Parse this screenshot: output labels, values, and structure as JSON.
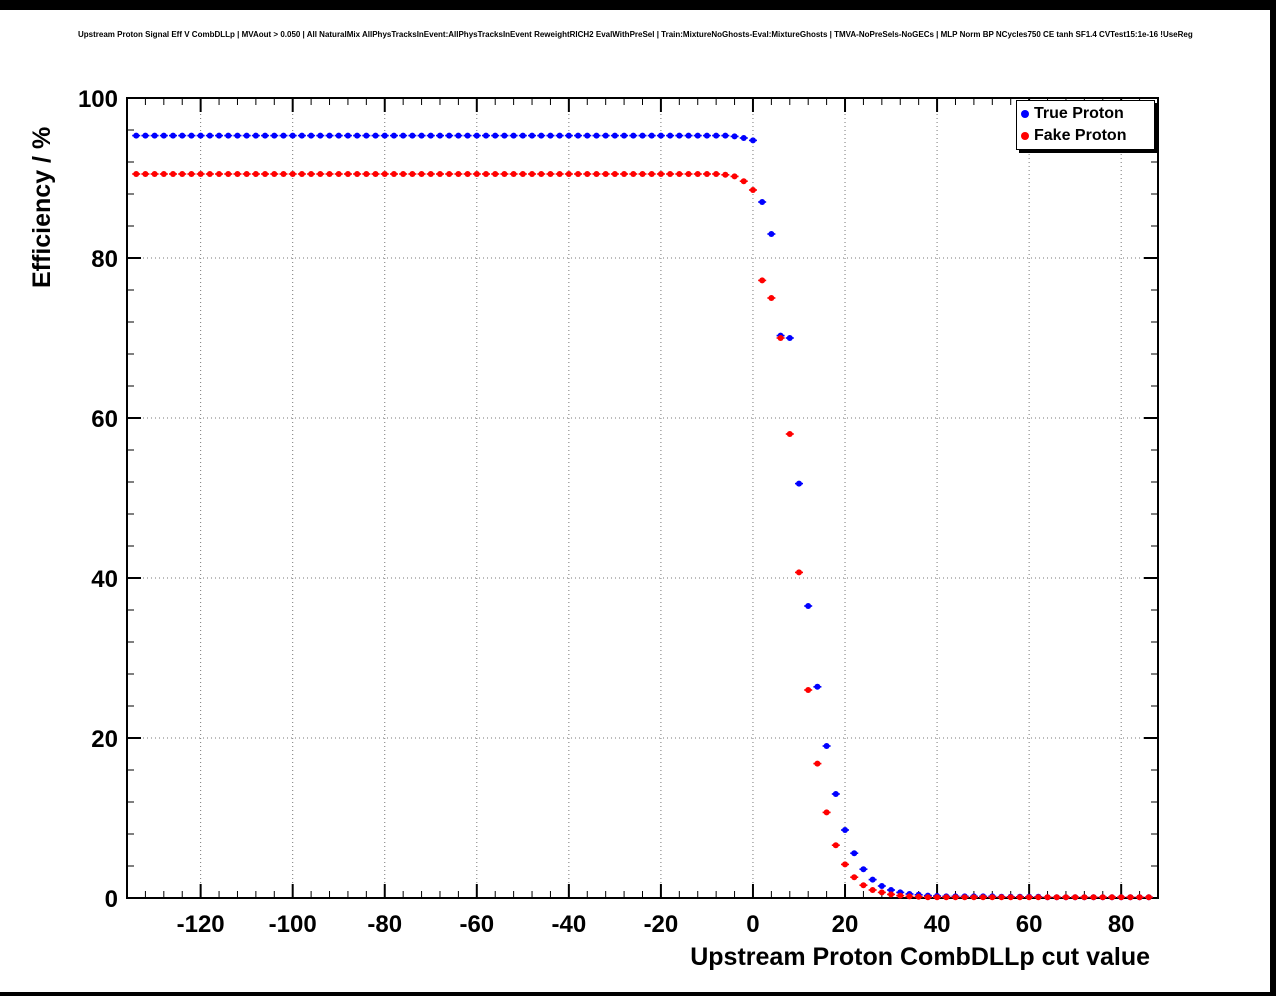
{
  "chart_data": {
    "type": "scatter",
    "title": "Upstream Proton Signal Eff V CombDLLp | MVAout > 0.050 | All NaturalMix AllPhysTracksInEvent:AllPhysTracksInEvent ReweightRICH2 EvalWithPreSel | Train:MixtureNoGhosts-Eval:MixtureGhosts | TMVA-NoPreSels-NoGECs | MLP Norm BP NCycles750 CE tanh SF1.4 CVTest15:1e-16 !UseReg",
    "xlabel": "Upstream Proton CombDLLp cut value",
    "ylabel": "Efficiency / %",
    "xlim": [
      -136,
      88
    ],
    "ylim": [
      0,
      100
    ],
    "x_ticks": [
      -120,
      -100,
      -80,
      -60,
      -40,
      -20,
      0,
      20,
      40,
      60,
      80
    ],
    "y_ticks": [
      0,
      20,
      40,
      60,
      80,
      100
    ],
    "grid": true,
    "legend": {
      "position": "top-right",
      "entries": [
        {
          "label": "True Proton",
          "color": "#0000ff"
        },
        {
          "label": "Fake Proton",
          "color": "#ff0000"
        }
      ]
    },
    "series": [
      {
        "name": "True Proton",
        "color": "#0000ff",
        "points": [
          [
            -134,
            95.3
          ],
          [
            -132,
            95.3
          ],
          [
            -130,
            95.3
          ],
          [
            -128,
            95.3
          ],
          [
            -126,
            95.3
          ],
          [
            -124,
            95.3
          ],
          [
            -122,
            95.3
          ],
          [
            -120,
            95.3
          ],
          [
            -118,
            95.3
          ],
          [
            -116,
            95.3
          ],
          [
            -114,
            95.3
          ],
          [
            -112,
            95.3
          ],
          [
            -110,
            95.3
          ],
          [
            -108,
            95.3
          ],
          [
            -106,
            95.3
          ],
          [
            -104,
            95.3
          ],
          [
            -102,
            95.3
          ],
          [
            -100,
            95.3
          ],
          [
            -98,
            95.3
          ],
          [
            -96,
            95.3
          ],
          [
            -94,
            95.3
          ],
          [
            -92,
            95.3
          ],
          [
            -90,
            95.3
          ],
          [
            -88,
            95.3
          ],
          [
            -86,
            95.3
          ],
          [
            -84,
            95.3
          ],
          [
            -82,
            95.3
          ],
          [
            -80,
            95.3
          ],
          [
            -78,
            95.3
          ],
          [
            -76,
            95.3
          ],
          [
            -74,
            95.3
          ],
          [
            -72,
            95.3
          ],
          [
            -70,
            95.3
          ],
          [
            -68,
            95.3
          ],
          [
            -66,
            95.3
          ],
          [
            -64,
            95.3
          ],
          [
            -62,
            95.3
          ],
          [
            -60,
            95.3
          ],
          [
            -58,
            95.3
          ],
          [
            -56,
            95.3
          ],
          [
            -54,
            95.3
          ],
          [
            -52,
            95.3
          ],
          [
            -50,
            95.3
          ],
          [
            -48,
            95.3
          ],
          [
            -46,
            95.3
          ],
          [
            -44,
            95.3
          ],
          [
            -42,
            95.3
          ],
          [
            -40,
            95.3
          ],
          [
            -38,
            95.3
          ],
          [
            -36,
            95.3
          ],
          [
            -34,
            95.3
          ],
          [
            -32,
            95.3
          ],
          [
            -30,
            95.3
          ],
          [
            -28,
            95.3
          ],
          [
            -26,
            95.3
          ],
          [
            -24,
            95.3
          ],
          [
            -22,
            95.3
          ],
          [
            -20,
            95.3
          ],
          [
            -18,
            95.3
          ],
          [
            -16,
            95.3
          ],
          [
            -14,
            95.3
          ],
          [
            -12,
            95.3
          ],
          [
            -10,
            95.3
          ],
          [
            -8,
            95.3
          ],
          [
            -6,
            95.3
          ],
          [
            -4,
            95.2
          ],
          [
            -2,
            95.0
          ],
          [
            0,
            94.7
          ],
          [
            2,
            87.0
          ],
          [
            4,
            83.0
          ],
          [
            6,
            70.3
          ],
          [
            8,
            70.0
          ],
          [
            10,
            51.8
          ],
          [
            12,
            36.5
          ],
          [
            14,
            26.4
          ],
          [
            16,
            19.0
          ],
          [
            18,
            13.0
          ],
          [
            20,
            8.5
          ],
          [
            22,
            5.6
          ],
          [
            24,
            3.6
          ],
          [
            26,
            2.3
          ],
          [
            28,
            1.5
          ],
          [
            30,
            1.0
          ],
          [
            32,
            0.7
          ],
          [
            34,
            0.5
          ],
          [
            36,
            0.4
          ],
          [
            38,
            0.3
          ],
          [
            40,
            0.25
          ],
          [
            42,
            0.2
          ],
          [
            44,
            0.2
          ],
          [
            46,
            0.2
          ],
          [
            48,
            0.2
          ],
          [
            50,
            0.2
          ],
          [
            52,
            0.2
          ],
          [
            54,
            0.15
          ],
          [
            56,
            0.15
          ],
          [
            58,
            0.15
          ],
          [
            60,
            0.15
          ],
          [
            62,
            0.15
          ],
          [
            64,
            0.1
          ],
          [
            66,
            0.1
          ],
          [
            68,
            0.1
          ],
          [
            70,
            0.1
          ],
          [
            72,
            0.1
          ],
          [
            74,
            0.1
          ],
          [
            76,
            0.1
          ],
          [
            78,
            0.1
          ],
          [
            80,
            0.1
          ],
          [
            82,
            0.1
          ],
          [
            84,
            0.1
          ],
          [
            86,
            0.1
          ]
        ]
      },
      {
        "name": "Fake Proton",
        "color": "#ff0000",
        "points": [
          [
            -134,
            90.5
          ],
          [
            -132,
            90.5
          ],
          [
            -130,
            90.5
          ],
          [
            -128,
            90.5
          ],
          [
            -126,
            90.5
          ],
          [
            -124,
            90.5
          ],
          [
            -122,
            90.5
          ],
          [
            -120,
            90.5
          ],
          [
            -118,
            90.5
          ],
          [
            -116,
            90.5
          ],
          [
            -114,
            90.5
          ],
          [
            -112,
            90.5
          ],
          [
            -110,
            90.5
          ],
          [
            -108,
            90.5
          ],
          [
            -106,
            90.5
          ],
          [
            -104,
            90.5
          ],
          [
            -102,
            90.5
          ],
          [
            -100,
            90.5
          ],
          [
            -98,
            90.5
          ],
          [
            -96,
            90.5
          ],
          [
            -94,
            90.5
          ],
          [
            -92,
            90.5
          ],
          [
            -90,
            90.5
          ],
          [
            -88,
            90.5
          ],
          [
            -86,
            90.5
          ],
          [
            -84,
            90.5
          ],
          [
            -82,
            90.5
          ],
          [
            -80,
            90.5
          ],
          [
            -78,
            90.5
          ],
          [
            -76,
            90.5
          ],
          [
            -74,
            90.5
          ],
          [
            -72,
            90.5
          ],
          [
            -70,
            90.5
          ],
          [
            -68,
            90.5
          ],
          [
            -66,
            90.5
          ],
          [
            -64,
            90.5
          ],
          [
            -62,
            90.5
          ],
          [
            -60,
            90.5
          ],
          [
            -58,
            90.5
          ],
          [
            -56,
            90.5
          ],
          [
            -54,
            90.5
          ],
          [
            -52,
            90.5
          ],
          [
            -50,
            90.5
          ],
          [
            -48,
            90.5
          ],
          [
            -46,
            90.5
          ],
          [
            -44,
            90.5
          ],
          [
            -42,
            90.5
          ],
          [
            -40,
            90.5
          ],
          [
            -38,
            90.5
          ],
          [
            -36,
            90.5
          ],
          [
            -34,
            90.5
          ],
          [
            -32,
            90.5
          ],
          [
            -30,
            90.5
          ],
          [
            -28,
            90.5
          ],
          [
            -26,
            90.5
          ],
          [
            -24,
            90.5
          ],
          [
            -22,
            90.5
          ],
          [
            -20,
            90.5
          ],
          [
            -18,
            90.5
          ],
          [
            -16,
            90.5
          ],
          [
            -14,
            90.5
          ],
          [
            -12,
            90.5
          ],
          [
            -10,
            90.5
          ],
          [
            -8,
            90.5
          ],
          [
            -6,
            90.4
          ],
          [
            -4,
            90.2
          ],
          [
            -2,
            89.6
          ],
          [
            0,
            88.5
          ],
          [
            2,
            77.2
          ],
          [
            4,
            75.0
          ],
          [
            6,
            70.0
          ],
          [
            8,
            58.0
          ],
          [
            10,
            40.7
          ],
          [
            12,
            26.0
          ],
          [
            14,
            16.8
          ],
          [
            16,
            10.7
          ],
          [
            18,
            6.6
          ],
          [
            20,
            4.2
          ],
          [
            22,
            2.6
          ],
          [
            24,
            1.6
          ],
          [
            26,
            1.0
          ],
          [
            28,
            0.7
          ],
          [
            30,
            0.45
          ],
          [
            32,
            0.3
          ],
          [
            34,
            0.2
          ],
          [
            36,
            0.15
          ],
          [
            38,
            0.1
          ],
          [
            40,
            0.1
          ],
          [
            42,
            0.1
          ],
          [
            44,
            0.1
          ],
          [
            46,
            0.1
          ],
          [
            48,
            0.1
          ],
          [
            50,
            0.1
          ],
          [
            52,
            0.1
          ],
          [
            54,
            0.1
          ],
          [
            56,
            0.1
          ],
          [
            58,
            0.1
          ],
          [
            60,
            0.1
          ],
          [
            62,
            0.1
          ],
          [
            64,
            0.1
          ],
          [
            66,
            0.1
          ],
          [
            68,
            0.1
          ],
          [
            70,
            0.1
          ],
          [
            72,
            0.1
          ],
          [
            74,
            0.1
          ],
          [
            76,
            0.1
          ],
          [
            78,
            0.1
          ],
          [
            80,
            0.1
          ],
          [
            82,
            0.1
          ],
          [
            84,
            0.1
          ],
          [
            86,
            0.1
          ]
        ]
      }
    ]
  }
}
